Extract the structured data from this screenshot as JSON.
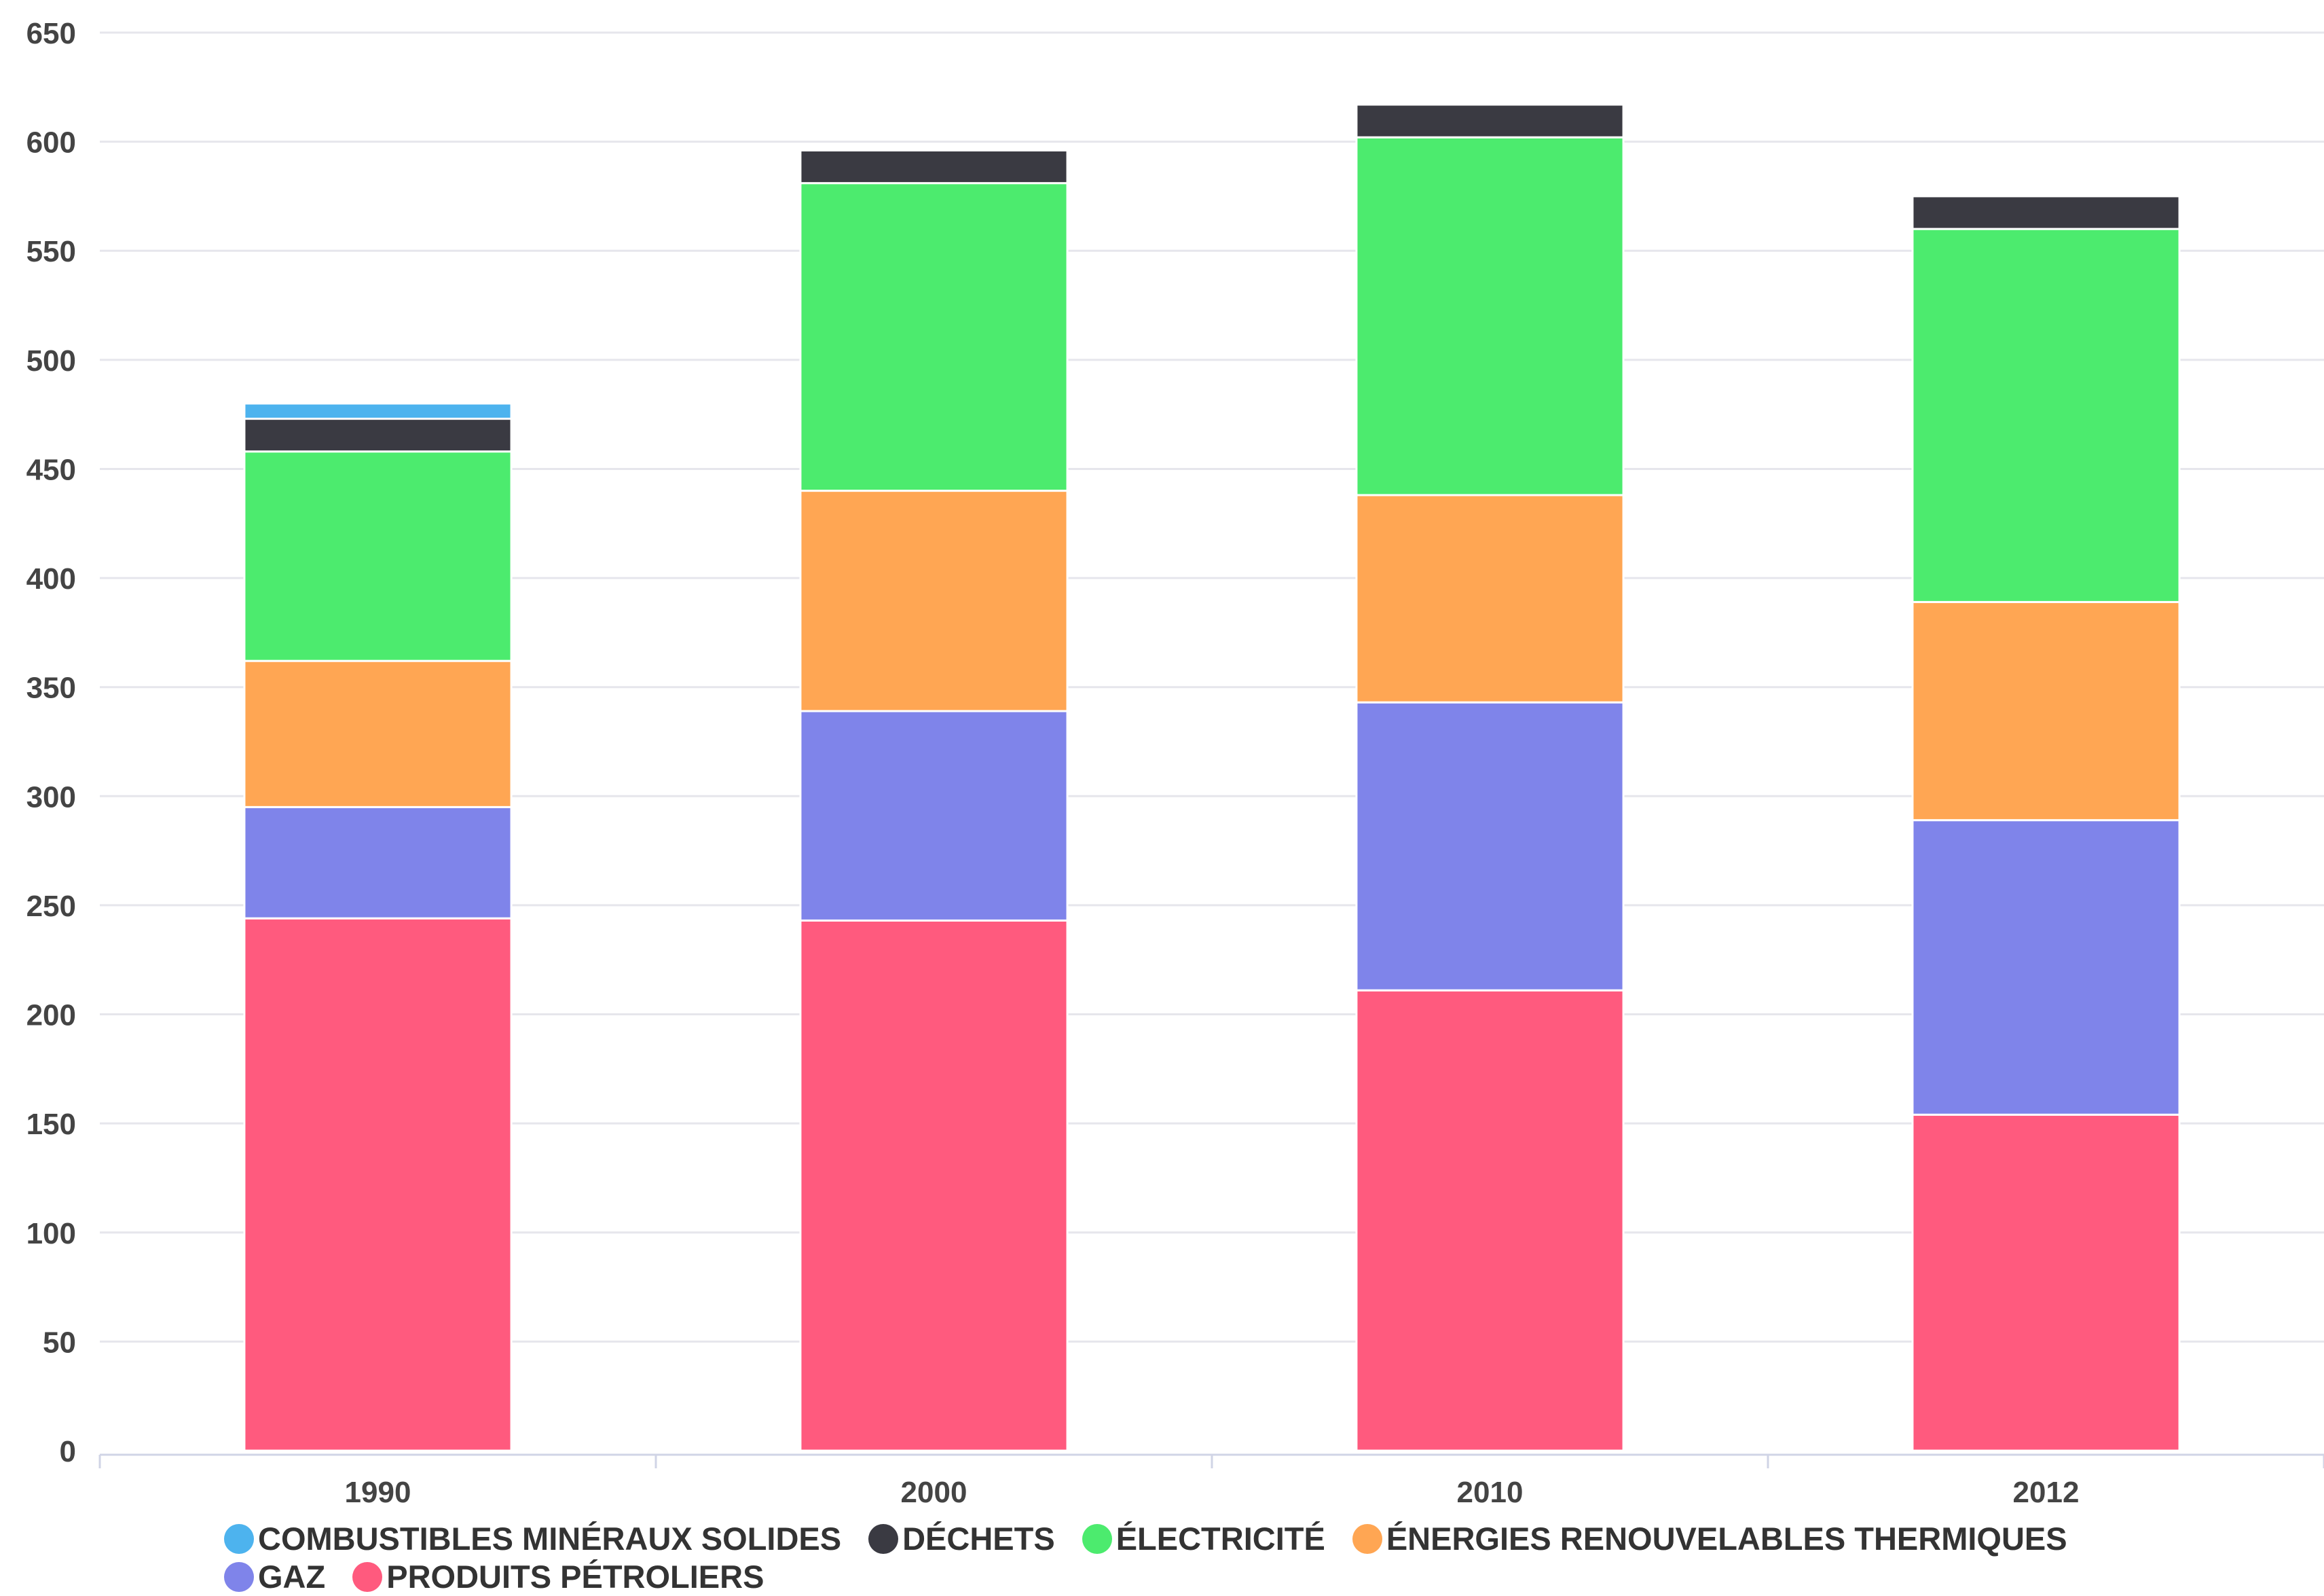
{
  "chart_data": {
    "type": "bar",
    "stacked": true,
    "categories": [
      "1990",
      "2000",
      "2010",
      "2012"
    ],
    "ylim": [
      0,
      650
    ],
    "yticks": [
      0,
      50,
      100,
      150,
      200,
      250,
      300,
      350,
      400,
      450,
      500,
      550,
      600,
      650
    ],
    "grid": true,
    "legend_position": "bottom",
    "series": [
      {
        "name": "PRODUITS PÉTROLIERS",
        "color": "#FF5A7E",
        "values": [
          244,
          243,
          211,
          154
        ]
      },
      {
        "name": "GAZ",
        "color": "#7F84EA",
        "values": [
          51,
          96,
          132,
          135
        ]
      },
      {
        "name": "ÉNERGIES RENOUVELABLES THERMIQUES",
        "color": "#FFA653",
        "values": [
          67,
          101,
          95,
          100
        ]
      },
      {
        "name": "ÉLECTRICITÉ",
        "color": "#4CEB6E",
        "values": [
          96,
          141,
          164,
          171
        ]
      },
      {
        "name": "DÉCHETS",
        "color": "#3A3A42",
        "values": [
          15,
          15,
          15,
          15
        ]
      },
      {
        "name": "COMBUSTIBLES MINÉRAUX SOLIDES",
        "color": "#4DB3EE",
        "values": [
          7,
          0,
          0,
          0
        ]
      }
    ],
    "legend_order": [
      "COMBUSTIBLES MINÉRAUX SOLIDES",
      "DÉCHETS",
      "ÉLECTRICITÉ",
      "ÉNERGIES RENOUVELABLES THERMIQUES",
      "GAZ",
      "PRODUITS PÉTROLIERS"
    ]
  }
}
